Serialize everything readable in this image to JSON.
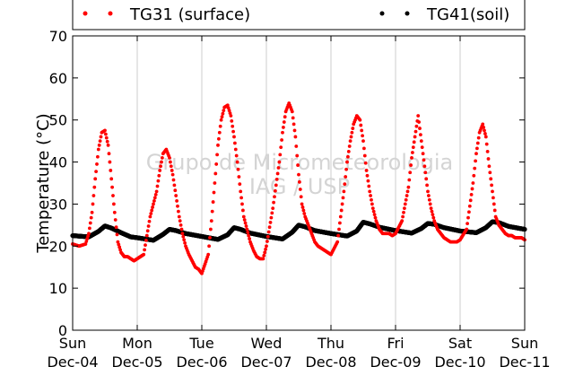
{
  "chart_data": {
    "type": "scatter",
    "ylabel": "Temperature (°C)",
    "ylim": [
      0,
      70
    ],
    "yticks": [
      0,
      10,
      20,
      30,
      40,
      50,
      60,
      70
    ],
    "xlim": [
      0,
      7
    ],
    "x_unit": "days",
    "xtick_labels": [
      [
        "Sun",
        "Dec-04"
      ],
      [
        "Mon",
        "Dec-05"
      ],
      [
        "Tue",
        "Dec-06"
      ],
      [
        "Wed",
        "Dec-07"
      ],
      [
        "Thu",
        "Dec-08"
      ],
      [
        "Fri",
        "Dec-09"
      ],
      [
        "Sat",
        "Dec-10"
      ],
      [
        "Sun",
        "Dec-11"
      ]
    ],
    "grid": "vertical",
    "legend_position": "top",
    "watermark": [
      "Grupo de Micrometeorologia",
      "IAG / USP"
    ],
    "series": [
      {
        "name": "TG31 (surface)",
        "color": "#ff0000",
        "x": [
          0.0,
          0.1,
          0.2,
          0.25,
          0.3,
          0.35,
          0.4,
          0.45,
          0.5,
          0.55,
          0.6,
          0.65,
          0.7,
          0.75,
          0.8,
          0.85,
          0.9,
          0.95,
          1.0,
          1.1,
          1.2,
          1.3,
          1.35,
          1.4,
          1.45,
          1.5,
          1.55,
          1.6,
          1.65,
          1.7,
          1.75,
          1.8,
          1.85,
          1.9,
          1.95,
          2.0,
          2.1,
          2.15,
          2.2,
          2.25,
          2.3,
          2.35,
          2.4,
          2.45,
          2.5,
          2.55,
          2.6,
          2.65,
          2.7,
          2.75,
          2.8,
          2.85,
          2.9,
          2.95,
          3.0,
          3.1,
          3.2,
          3.25,
          3.3,
          3.35,
          3.4,
          3.45,
          3.5,
          3.55,
          3.6,
          3.65,
          3.7,
          3.75,
          3.8,
          3.85,
          3.9,
          3.95,
          4.0,
          4.1,
          4.2,
          4.25,
          4.3,
          4.35,
          4.4,
          4.45,
          4.5,
          4.55,
          4.6,
          4.65,
          4.7,
          4.75,
          4.8,
          4.85,
          4.9,
          4.95,
          5.0,
          5.1,
          5.2,
          5.25,
          5.3,
          5.35,
          5.4,
          5.45,
          5.5,
          5.55,
          5.6,
          5.65,
          5.7,
          5.75,
          5.8,
          5.85,
          5.9,
          5.95,
          6.0,
          6.1,
          6.2,
          6.25,
          6.3,
          6.35,
          6.4,
          6.45,
          6.5,
          6.55,
          6.6,
          6.65,
          6.7,
          6.75,
          6.8,
          6.85,
          6.9,
          6.95,
          7.0
        ],
        "y": [
          20.5,
          20.0,
          20.5,
          23,
          28,
          36,
          43,
          47,
          47.5,
          44,
          36,
          28,
          21,
          18.5,
          17.5,
          17.5,
          17,
          16.5,
          17,
          18,
          27,
          33,
          38,
          42,
          43,
          41,
          37,
          32,
          27,
          23,
          20,
          18,
          16.5,
          15,
          14.5,
          13.5,
          18,
          26,
          35,
          44,
          50,
          53,
          53.5,
          51,
          46,
          40,
          33,
          27,
          24,
          21,
          19,
          17.5,
          17,
          17,
          20,
          29,
          40,
          47,
          52,
          54,
          52,
          46,
          37,
          30,
          27,
          25,
          23,
          21,
          20,
          19.5,
          19,
          18.5,
          18,
          21,
          33,
          40,
          45,
          49,
          51,
          50,
          45,
          38,
          33,
          29,
          26,
          24,
          23,
          23,
          23,
          22.5,
          23,
          26,
          34,
          41,
          46,
          51,
          45,
          39,
          33,
          29,
          26,
          24,
          23,
          22,
          21.5,
          21,
          21,
          21,
          21.5,
          24,
          35,
          42,
          47,
          49,
          46,
          39,
          33,
          27,
          25,
          24,
          23,
          22.5,
          22.5,
          22,
          22,
          22,
          21.5
        ]
      },
      {
        "name": "TG41(soil)",
        "color": "#000000",
        "x": [
          0.0,
          0.25,
          0.4,
          0.5,
          0.6,
          0.75,
          0.9,
          1.0,
          1.25,
          1.4,
          1.5,
          1.6,
          1.75,
          2.0,
          2.25,
          2.4,
          2.5,
          2.6,
          2.75,
          3.0,
          3.25,
          3.4,
          3.5,
          3.6,
          3.75,
          4.0,
          4.25,
          4.4,
          4.5,
          4.6,
          4.75,
          5.0,
          5.25,
          5.4,
          5.5,
          5.6,
          5.75,
          6.0,
          6.25,
          6.4,
          6.5,
          6.6,
          6.75,
          7.0
        ],
        "y": [
          22.5,
          22.2,
          23.5,
          24.8,
          24.3,
          23.2,
          22.2,
          22.0,
          21.4,
          22.8,
          24.0,
          23.7,
          23.0,
          22.3,
          21.6,
          22.7,
          24.4,
          24.0,
          23.1,
          22.3,
          21.7,
          23.3,
          25.0,
          24.6,
          23.7,
          23.0,
          22.4,
          23.6,
          25.7,
          25.3,
          24.5,
          23.7,
          23.1,
          24.2,
          25.4,
          25.2,
          24.4,
          23.6,
          23.2,
          24.4,
          25.8,
          25.6,
          24.7,
          24.0
        ]
      }
    ]
  }
}
